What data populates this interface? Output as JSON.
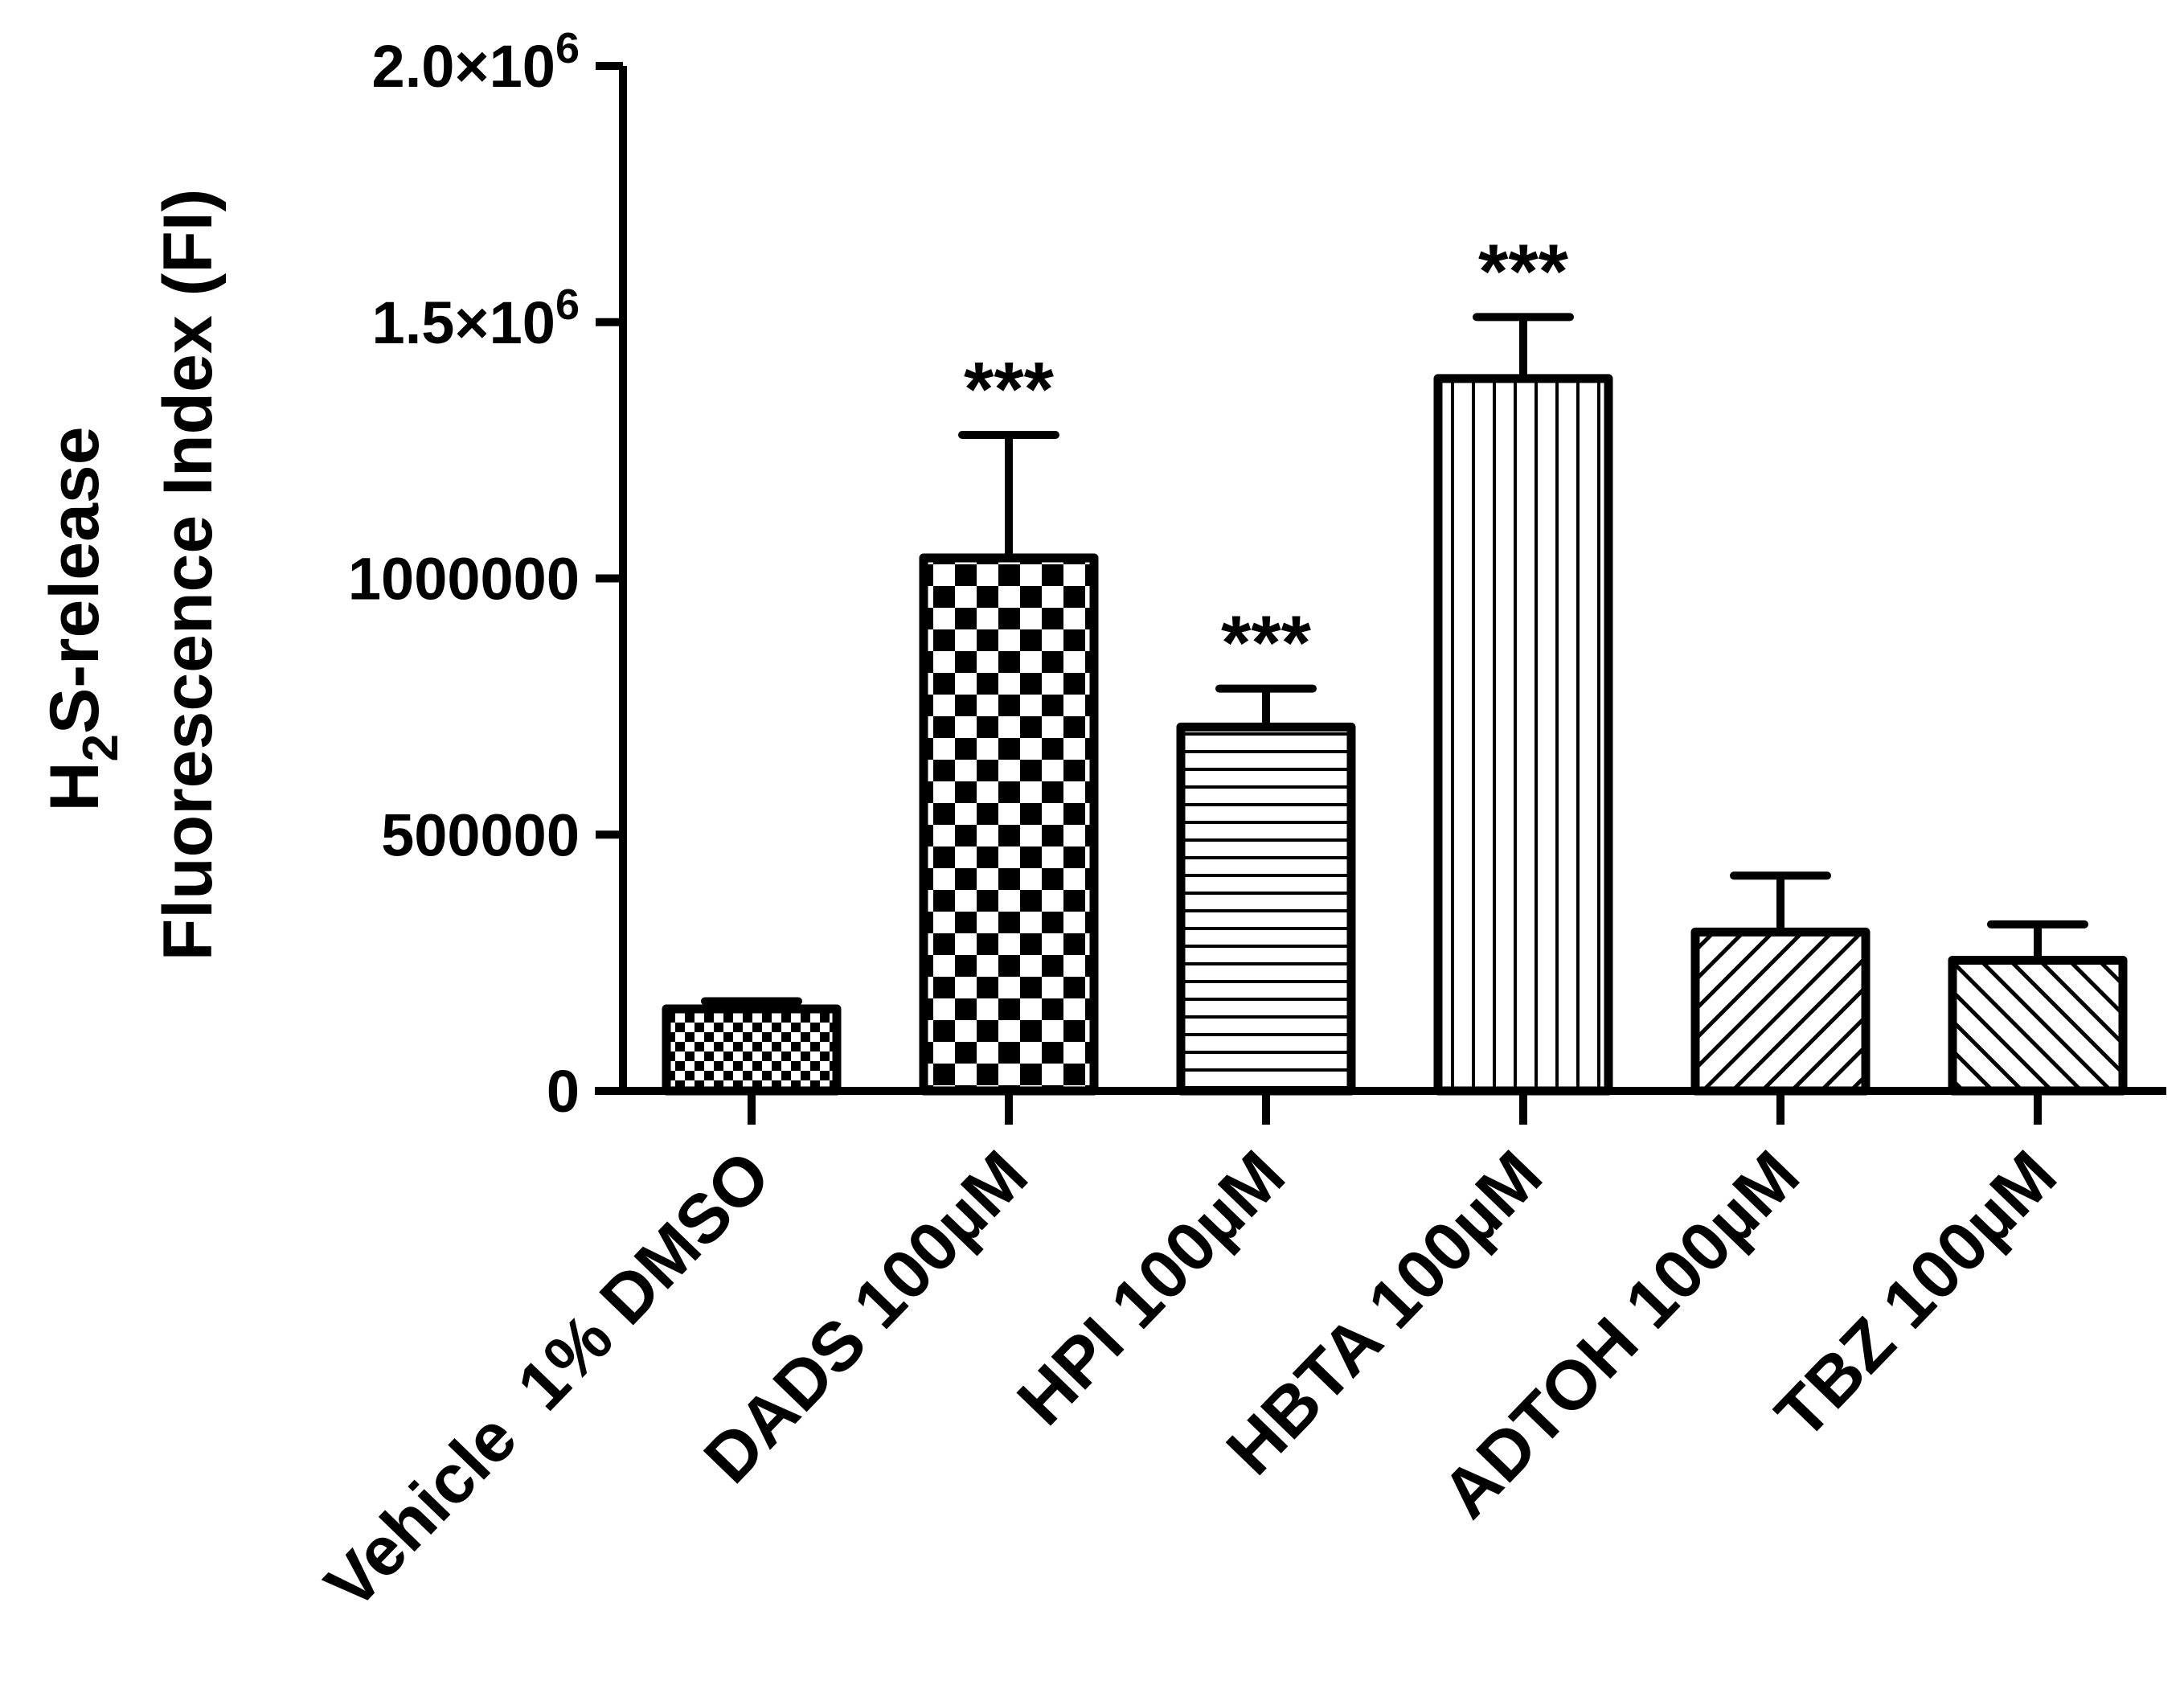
{
  "chart_data": {
    "type": "bar",
    "ylabel_line1": "H2S-release",
    "ylabel_line1_parts": [
      "H",
      "2",
      "S-release"
    ],
    "ylabel_line2": "Fluorescence Index (FI)",
    "xlabel": "",
    "ylim": [
      0,
      2000000
    ],
    "y_ticks": [
      {
        "value": 0,
        "label": "0"
      },
      {
        "value": 500000,
        "label": "500000"
      },
      {
        "value": 1000000,
        "label": "1000000"
      },
      {
        "value": 1500000,
        "label": "1.5×10",
        "exponent": "6"
      },
      {
        "value": 2000000,
        "label": "2.0×10",
        "exponent": "6"
      }
    ],
    "categories": [
      "Vehicle  1% DMSO",
      "DADS 100µM",
      "HPI 100µM",
      "HBTA 100µM",
      "ADTOH 100µM",
      "TBZ 100µM"
    ],
    "values": [
      160000,
      1040000,
      710000,
      1390000,
      310000,
      255000
    ],
    "error_upper": [
      175000,
      1280000,
      785000,
      1510000,
      420000,
      325000
    ],
    "significance": [
      "",
      "***",
      "***",
      "***",
      "",
      ""
    ],
    "patterns": [
      "fine-check",
      "checkerboard",
      "horizontal-lines",
      "vertical-lines",
      "diagonal-up",
      "diagonal-down"
    ],
    "grid": false,
    "legend": "none"
  }
}
